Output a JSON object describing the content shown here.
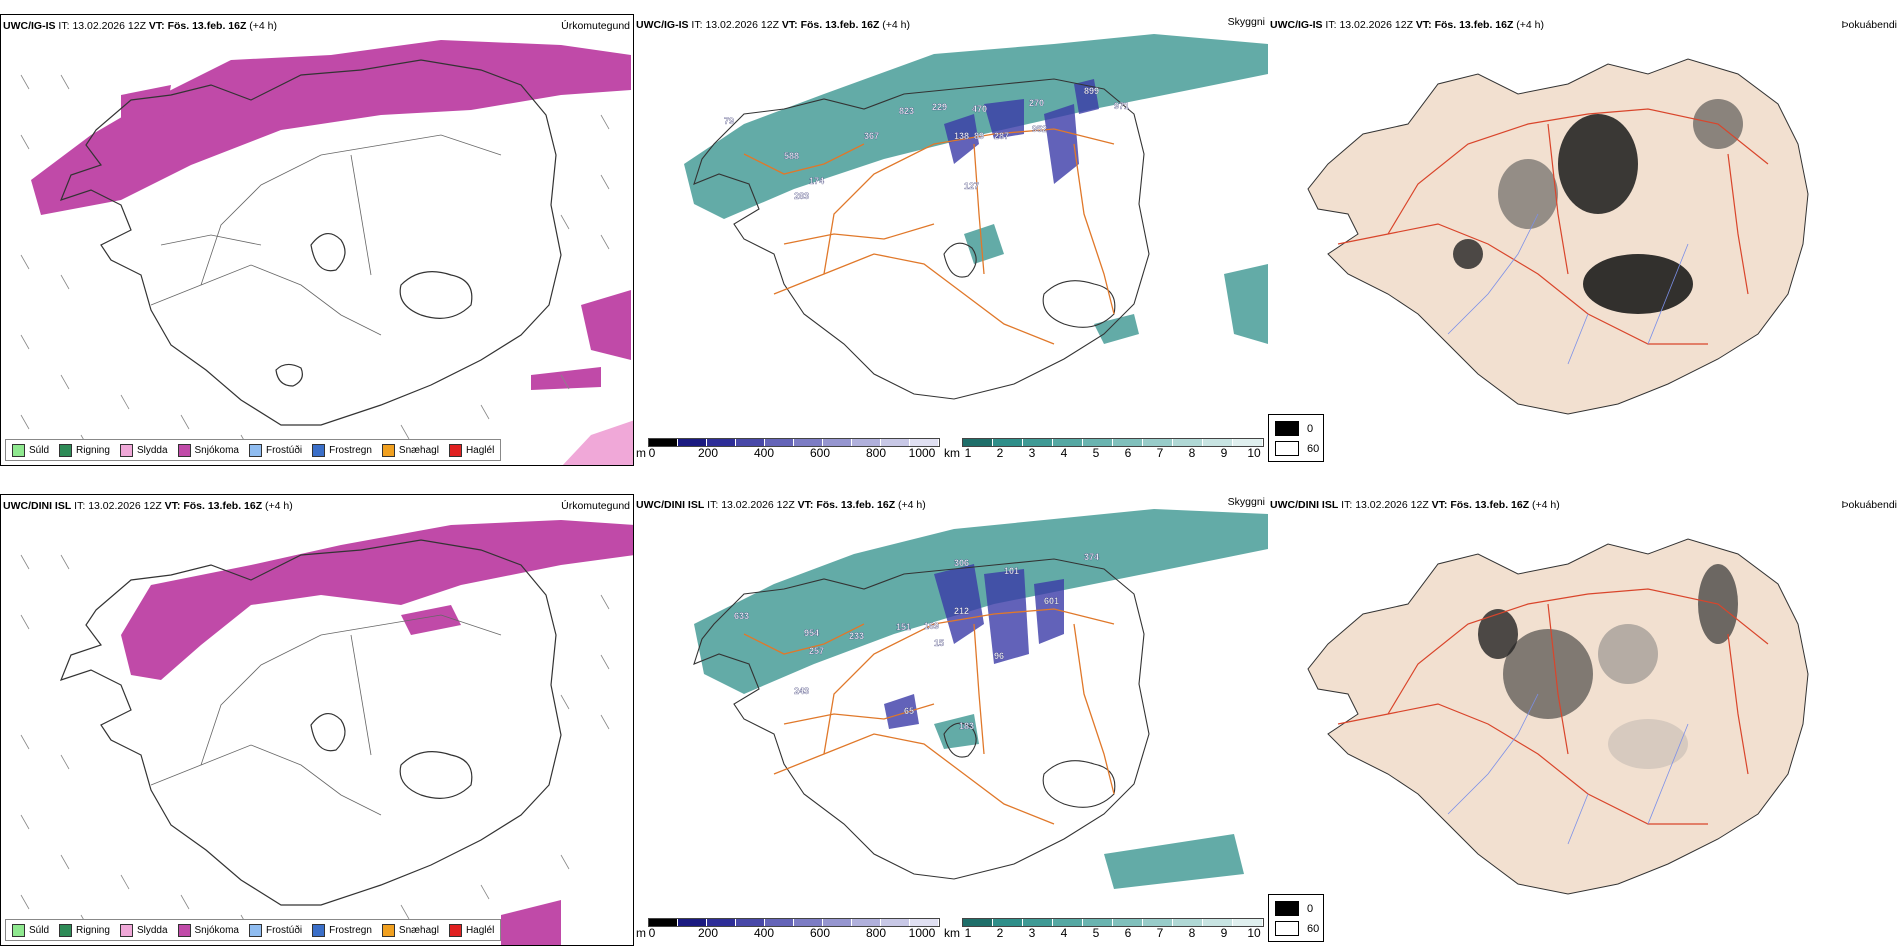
{
  "colors": {
    "snow": "#c04aa8",
    "teal": "#2f8f8a",
    "orange_roads": "#e0782a",
    "red_roads": "#d9452b",
    "land_beige": "#f2e0d0",
    "river_blue": "#7b8fe8",
    "blue_cloud": "#3b3ba8"
  },
  "rows": [
    {
      "precip": {
        "model": "UWC/IG-IS",
        "it_label": "IT:",
        "it_value": "13.02.2026 12Z",
        "vt_label": "VT:",
        "vt_value": "Fös. 13.feb. 16Z",
        "lead": "(+4 h)",
        "tag": "Úrkomutegund"
      },
      "cloud": {
        "model": "UWC/IG-IS",
        "it_label": "IT:",
        "it_value": "13.02.2026 12Z",
        "vt_label": "VT:",
        "vt_value": "Fös. 13.feb. 16Z",
        "lead": "(+4 h)",
        "tag": "Skyggni",
        "numbers": [
          "79",
          "588",
          "367",
          "823",
          "229",
          "470",
          "270",
          "899",
          "971",
          "952",
          "283",
          "174",
          "138",
          "89",
          "287",
          "127"
        ]
      },
      "dew": {
        "model": "UWC/IG-IS",
        "it_label": "IT:",
        "it_value": "13.02.2026 12Z",
        "vt_label": "VT:",
        "vt_value": "Fös. 13.feb. 16Z",
        "lead": "(+4 h)",
        "tag": "Þokuábendi"
      }
    },
    {
      "precip": {
        "model": "UWC/DINI ISL",
        "it_label": "IT:",
        "it_value": "13.02.2026 12Z",
        "vt_label": "VT:",
        "vt_value": "Fös. 13.feb. 16Z",
        "lead": "(+4 h)",
        "tag": "Úrkomutegund"
      },
      "cloud": {
        "model": "UWC/DINI ISL",
        "it_label": "IT:",
        "it_value": "13.02.2026 12Z",
        "vt_label": "VT:",
        "vt_value": "Fös. 13.feb. 16Z",
        "lead": "(+4 h)",
        "tag": "Skyggni",
        "numbers": [
          "633",
          "954",
          "257",
          "233",
          "151",
          "306",
          "212",
          "169",
          "374",
          "15",
          "96",
          "65",
          "243",
          "183",
          "101",
          "601"
        ]
      },
      "dew": {
        "model": "UWC/DINI ISL",
        "it_label": "IT:",
        "it_value": "13.02.2026 12Z",
        "vt_label": "VT:",
        "vt_value": "Fös. 13.feb. 16Z",
        "lead": "(+4 h)",
        "tag": "Þokuábendi"
      }
    }
  ],
  "precip_legend": [
    {
      "label": "Súld",
      "color": "#8fe88f"
    },
    {
      "label": "Rigning",
      "color": "#2e8b57"
    },
    {
      "label": "Slydda",
      "color": "#f0a8d8"
    },
    {
      "label": "Snjókoma",
      "color": "#c04aa8"
    },
    {
      "label": "Frostúði",
      "color": "#8fbcf0"
    },
    {
      "label": "Frostregn",
      "color": "#3b6fc8"
    },
    {
      "label": "Snæhagl",
      "color": "#f0a020"
    },
    {
      "label": "Haglél",
      "color": "#e02020"
    }
  ],
  "cloudbase_scale": {
    "unit": "m",
    "ticks": [
      "0",
      "200",
      "400",
      "600",
      "800",
      "1000"
    ],
    "colors": [
      "#000000",
      "#1a1a80",
      "#2e2e98",
      "#4848a8",
      "#6464b8",
      "#7c7cc4",
      "#9696d0",
      "#b0b0dc",
      "#c8c8e6",
      "#e0e0f2"
    ]
  },
  "visibility_scale": {
    "unit": "km",
    "ticks": [
      "1",
      "2",
      "3",
      "4",
      "5",
      "6",
      "7",
      "8",
      "9",
      "10"
    ],
    "colors": [
      "#1f6f6a",
      "#2f8f8a",
      "#3f9a95",
      "#55a8a3",
      "#6ab4b0",
      "#80c0bc",
      "#98ccc9",
      "#b0d8d5",
      "#c8e4e2",
      "#e0f0ef"
    ]
  },
  "fog_scale": {
    "high": "0",
    "low": "60"
  }
}
